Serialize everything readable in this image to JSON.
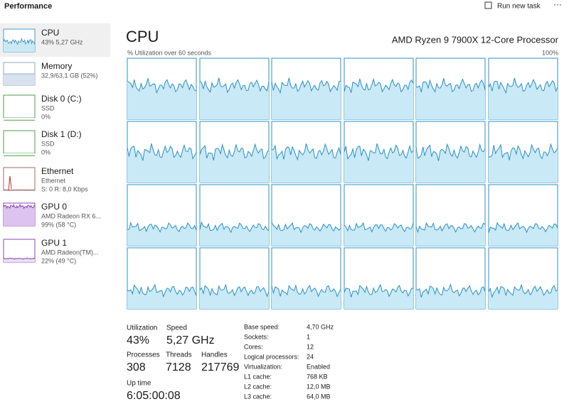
{
  "header": {
    "title": "Performance",
    "action": "Run new task"
  },
  "sidebar": [
    {
      "name": "CPU",
      "lines": [
        "43% 5,27 GHz"
      ]
    },
    {
      "name": "Memory",
      "lines": [
        "32,9/63,1 GB (52%)"
      ]
    },
    {
      "name": "Disk 0 (C:)",
      "lines": [
        "SSD",
        "0%"
      ]
    },
    {
      "name": "Disk 1 (D:)",
      "lines": [
        "SSD",
        "0%"
      ]
    },
    {
      "name": "Ethernet",
      "lines": [
        "Ethernet",
        "S: 0 R: 8,0 Kbps"
      ]
    },
    {
      "name": "GPU 0",
      "lines": [
        "AMD Radeon RX 6...",
        "99% (58 °C)"
      ]
    },
    {
      "name": "GPU 1",
      "lines": [
        "AMD Radeon(TM)...",
        "22% (49 °C)"
      ]
    }
  ],
  "main": {
    "title": "CPU",
    "processor": "AMD Ryzen 9 7900X 12-Core Processor",
    "graph_label": "% Utilization over 60 seconds",
    "graph_max": "100%"
  },
  "stats": [
    {
      "label": "Utilization",
      "value": "43%"
    },
    {
      "label": "Speed",
      "value": "5,27 GHz"
    },
    {
      "label": "Processes",
      "value": "308"
    },
    {
      "label": "Threads",
      "value": "7128"
    },
    {
      "label": "Handles",
      "value": "217769"
    },
    {
      "label": "Up time",
      "value": "6:05:00:08"
    }
  ],
  "details": [
    [
      "Base speed:",
      "4,70 GHz"
    ],
    [
      "Sockets:",
      "1"
    ],
    [
      "Cores:",
      "12"
    ],
    [
      "Logical processors:",
      "24"
    ],
    [
      "Virtualization:",
      "Enabled"
    ],
    [
      "L1 cache:",
      "768 KB"
    ],
    [
      "L2 cache:",
      "12,0 MB"
    ],
    [
      "L3 cache:",
      "64,0 MB"
    ]
  ]
}
